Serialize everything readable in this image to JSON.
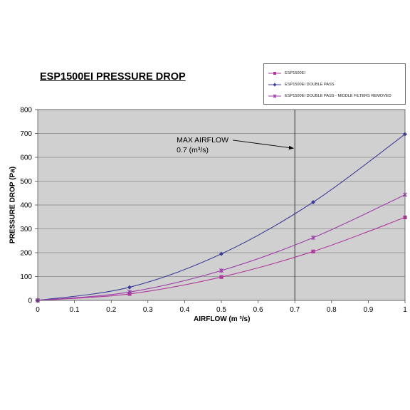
{
  "chart_data": {
    "type": "line",
    "title": "ESP1500EI PRESSURE DROP",
    "xlabel": "AIRFLOW (m ³/s)",
    "ylabel": "PRESSURE DROP (Pa)",
    "xlim": [
      0,
      1
    ],
    "ylim": [
      0,
      800
    ],
    "x_ticks": [
      "0",
      "0.1",
      "0.2",
      "0.3",
      "0.4",
      "0.5",
      "0.6",
      "0.7",
      "0.8",
      "0.9",
      "1"
    ],
    "y_ticks": [
      "0",
      "100",
      "200",
      "300",
      "400",
      "500",
      "600",
      "700",
      "800"
    ],
    "grid": "horizontal",
    "legend_position": "top-right",
    "series": [
      {
        "name": "ESP1500EI",
        "color": "#b03a9a",
        "marker": "square",
        "x": [
          0,
          0.25,
          0.5,
          0.75,
          1
        ],
        "y": [
          0,
          27,
          98,
          205,
          348
        ]
      },
      {
        "name": "ESP1500EI DOUBLE PASS",
        "color": "#3c3d9a",
        "marker": "diamond",
        "x": [
          0,
          0.25,
          0.5,
          0.75,
          1
        ],
        "y": [
          0,
          55,
          195,
          412,
          697
        ]
      },
      {
        "name": "ESP1500EI DOUBLE PASS  - MIDDLE FILTERS REMOVED",
        "color": "#9c3fa8",
        "marker": "star",
        "x": [
          0,
          0.25,
          0.5,
          0.75,
          1
        ],
        "y": [
          0,
          35,
          125,
          263,
          443
        ]
      }
    ],
    "reference_line": {
      "x": 0.7,
      "color": "#333333"
    },
    "annotation": {
      "line1": "MAX AIRFLOW",
      "line2": "0.7 (m³/s)",
      "text_at": [
        0.38,
        660
      ],
      "arrow_to": [
        0.7,
        638
      ]
    }
  }
}
